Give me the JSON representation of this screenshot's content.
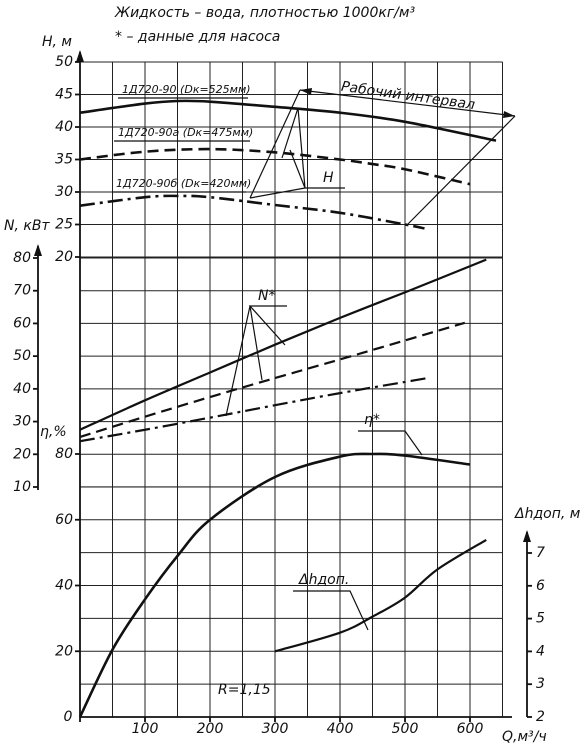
{
  "chart_data": {
    "type": "line",
    "notes": [
      "Жидкость – вода, плотностью 1000кг/м³",
      "* – данные для насоса"
    ],
    "xlabel": "Q,м³/ч",
    "xlim": [
      0,
      650
    ],
    "xticks": [
      0,
      100,
      200,
      300,
      400,
      500,
      600
    ],
    "xgrid": [
      0,
      50,
      100,
      150,
      200,
      250,
      300,
      350,
      400,
      450,
      500,
      550,
      600,
      650
    ],
    "ylabel": "H, м",
    "ylim": [
      20,
      50
    ],
    "yticks": [
      20,
      25,
      30,
      35,
      40,
      45,
      50
    ],
    "y2label": "N, кВт",
    "y2lim": [
      10,
      80
    ],
    "y2ticks": [
      10,
      20,
      30,
      40,
      50,
      60,
      70,
      80
    ],
    "y3label": "η,%",
    "y3lim": [
      0,
      80
    ],
    "y3ticks": [
      0,
      20,
      40,
      60,
      80
    ],
    "y3grid": [
      0,
      10,
      20,
      30,
      40,
      50,
      60,
      70
    ],
    "y4label": "Δhдоп, м",
    "y4lim": [
      2,
      7
    ],
    "y4ticks": [
      2,
      3,
      4,
      5,
      6,
      7
    ],
    "grid": true,
    "color": "#111111",
    "annotations": [
      "H",
      "N*",
      "η*",
      "Δhдоп.",
      "R=1,15",
      "Рабочий интервал"
    ],
    "series": [
      {
        "name": "1Д720-90 (Dк=525мм)",
        "axis": "y",
        "style": "solid",
        "x": [
          0,
          100,
          150,
          200,
          300,
          400,
          500,
          640
        ],
        "values": [
          42.2,
          43.6,
          44,
          43.9,
          43.1,
          42.2,
          40.8,
          37.9
        ]
      },
      {
        "name": "1Д720-90а (Dк=475мм)",
        "axis": "y",
        "style": "dashed",
        "x": [
          0,
          100,
          200,
          300,
          400,
          450,
          500,
          600
        ],
        "values": [
          35,
          36.2,
          36.6,
          36.1,
          35,
          34.3,
          33.5,
          31.2
        ]
      },
      {
        "name": "1Д720-90б (Dк=420мм)",
        "axis": "y",
        "style": "dashdot",
        "x": [
          0,
          100,
          150,
          200,
          300,
          400,
          500,
          530
        ],
        "values": [
          27.9,
          29.2,
          29.4,
          29.2,
          28,
          26.8,
          25,
          24.4
        ]
      },
      {
        "axis": "y2",
        "style": "solid",
        "x": [
          0,
          100,
          200,
          300,
          400,
          500,
          625
        ],
        "values": [
          27.5,
          36.5,
          45,
          53.5,
          61.7,
          69.5,
          79.5
        ]
      },
      {
        "axis": "y2",
        "style": "dashed",
        "x": [
          0,
          100,
          200,
          300,
          400,
          500,
          592
        ],
        "values": [
          25.3,
          31.5,
          37.5,
          43.3,
          49,
          54.8,
          60.2
        ]
      },
      {
        "axis": "y2",
        "style": "dashdot",
        "x": [
          0,
          100,
          200,
          300,
          400,
          535
        ],
        "values": [
          24,
          27.5,
          31.2,
          35,
          38.7,
          43.3
        ]
      },
      {
        "axis": "y3",
        "style": "solid",
        "x": [
          0,
          50,
          100,
          150,
          200,
          300,
          400,
          450,
          500,
          600
        ],
        "values": [
          0,
          20.5,
          35.8,
          49,
          60,
          73,
          79.2,
          80,
          79.5,
          76.8
        ]
      },
      {
        "axis": "y4",
        "style": "solid",
        "x": [
          300,
          400,
          450,
          500,
          550,
          625
        ],
        "values": [
          4,
          4.57,
          5.06,
          5.64,
          6.5,
          7.4
        ]
      }
    ]
  }
}
